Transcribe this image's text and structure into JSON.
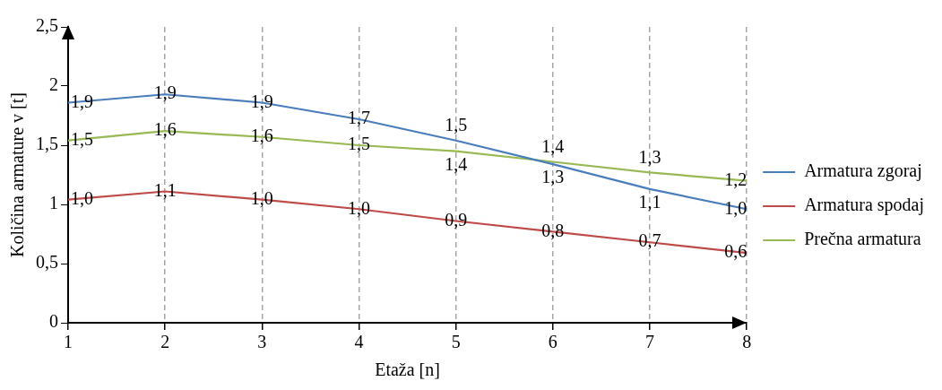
{
  "chart_data": {
    "type": "line",
    "xlabel": "Etaža [n]",
    "ylabel": "Količina armature v [t]",
    "x": [
      1,
      2,
      3,
      4,
      5,
      6,
      7,
      8
    ],
    "series": [
      {
        "name": "Armatura zgoraj",
        "color": "#4a7ebb",
        "values": [
          1.86,
          1.93,
          1.86,
          1.72,
          1.54,
          1.34,
          1.13,
          0.96
        ],
        "value_labels": [
          "1,9",
          "1,9",
          "1,9",
          "1,7",
          "1,5",
          "1,3",
          "1,1",
          "1,0"
        ]
      },
      {
        "name": "Armatura spodaj",
        "color": "#be4b48",
        "values": [
          1.04,
          1.11,
          1.04,
          0.96,
          0.86,
          0.77,
          0.68,
          0.59
        ],
        "value_labels": [
          "1,0",
          "1,1",
          "1,0",
          "1,0",
          "0,9",
          "0,8",
          "0,7",
          "0,6"
        ]
      },
      {
        "name": "Prečna armatura",
        "color": "#98b954",
        "values": [
          1.54,
          1.62,
          1.57,
          1.5,
          1.45,
          1.36,
          1.27,
          1.2
        ],
        "value_labels": [
          "1,5",
          "1,6",
          "1,6",
          "1,5",
          "1,4",
          "1,4",
          "1,3",
          "1,2"
        ]
      }
    ],
    "xlim": [
      1,
      8
    ],
    "xticks": [
      1,
      2,
      3,
      4,
      5,
      6,
      7,
      8
    ],
    "ylim": [
      0,
      2.5
    ],
    "yticks": [
      0,
      {
        "value": 0.5,
        "label": "0,5"
      },
      1,
      {
        "value": 1.5,
        "label": "1,5"
      },
      2,
      {
        "value": 2.5,
        "label": "2,5"
      }
    ],
    "grid": "x",
    "legend": "right",
    "marker": "none",
    "line_style": "solid"
  }
}
